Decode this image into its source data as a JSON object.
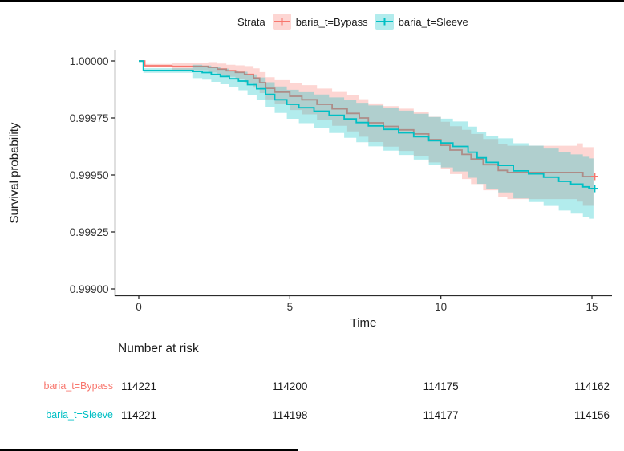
{
  "chart_data": {
    "type": "line",
    "subtype": "kaplan-meier-step",
    "title": "",
    "xlabel": "Time",
    "ylabel": "Survival probability",
    "xlim": [
      0,
      15
    ],
    "ylim": [
      0.999,
      1.0
    ],
    "grid": "off",
    "legend_position": "top",
    "legend_title": "Strata",
    "x_ticks": [
      {
        "v": 0,
        "label": "0"
      },
      {
        "v": 5,
        "label": "5"
      },
      {
        "v": 10,
        "label": "10"
      },
      {
        "v": 15,
        "label": "15"
      }
    ],
    "y_ticks": [
      {
        "v": 1.0,
        "label": "1.00000"
      },
      {
        "v": 0.99975,
        "label": "0.99975"
      },
      {
        "v": 0.9995,
        "label": "0.99950"
      },
      {
        "v": 0.99925,
        "label": "0.99925"
      },
      {
        "v": 0.999,
        "label": "0.99900"
      }
    ],
    "ci_alpha": 0.3,
    "censor_mark": "+",
    "series": [
      {
        "name": "baria_t=Bypass",
        "color": "#F8766D",
        "steps": [
          [
            0,
            1.0
          ],
          [
            0.2,
            0.999979
          ],
          [
            1.1,
            0.999976
          ],
          [
            2.3,
            0.999972
          ],
          [
            2.6,
            0.999964
          ],
          [
            2.9,
            0.999957
          ],
          [
            3.2,
            0.99995
          ],
          [
            3.5,
            0.999941
          ],
          [
            3.8,
            0.999925
          ],
          [
            4.0,
            0.999905
          ],
          [
            4.2,
            0.99988
          ],
          [
            4.5,
            0.999863
          ],
          [
            5.0,
            0.999845
          ],
          [
            5.4,
            0.99983
          ],
          [
            5.9,
            0.99981
          ],
          [
            6.4,
            0.99979
          ],
          [
            6.9,
            0.99977
          ],
          [
            7.3,
            0.99975
          ],
          [
            7.6,
            0.999729
          ],
          [
            8.1,
            0.999713
          ],
          [
            8.6,
            0.999698
          ],
          [
            9.1,
            0.99968
          ],
          [
            9.6,
            0.999655
          ],
          [
            10.0,
            0.99963
          ],
          [
            10.3,
            0.999609
          ],
          [
            10.7,
            0.99959
          ],
          [
            11.0,
            0.99957
          ],
          [
            11.4,
            0.999545
          ],
          [
            11.9,
            0.99952
          ],
          [
            12.2,
            0.999511
          ],
          [
            14.5,
            0.999511
          ],
          [
            14.7,
            0.999493
          ],
          [
            15.05,
            0.999493
          ]
        ],
        "ci_margin": [
          [
            0,
            4e-06
          ],
          [
            0.5,
            1.3e-05
          ],
          [
            1,
            1.6e-05
          ],
          [
            2,
            2.1e-05
          ],
          [
            3,
            2.7e-05
          ],
          [
            4,
            4.6e-05
          ],
          [
            5,
            6e-05
          ],
          [
            6,
            7e-05
          ],
          [
            7,
            8e-05
          ],
          [
            8,
            8.8e-05
          ],
          [
            9,
            9.6e-05
          ],
          [
            10,
            0.000103
          ],
          [
            11,
            0.00011
          ],
          [
            12,
            0.000116
          ],
          [
            13,
            0.000121
          ],
          [
            14,
            0.000126
          ],
          [
            15.05,
            0.00013
          ]
        ]
      },
      {
        "name": "baria_t=Sleeve",
        "color": "#00BFC4",
        "steps": [
          [
            0,
            1.0
          ],
          [
            0.15,
            0.999958
          ],
          [
            1.8,
            0.999954
          ],
          [
            2.1,
            0.999949
          ],
          [
            2.4,
            0.999941
          ],
          [
            2.7,
            0.999932
          ],
          [
            3.0,
            0.999922
          ],
          [
            3.3,
            0.999912
          ],
          [
            3.6,
            0.999896
          ],
          [
            3.9,
            0.999878
          ],
          [
            4.2,
            0.999853
          ],
          [
            4.5,
            0.99983
          ],
          [
            4.9,
            0.99981
          ],
          [
            5.3,
            0.999795
          ],
          [
            5.8,
            0.99978
          ],
          [
            6.3,
            0.999762
          ],
          [
            6.8,
            0.999746
          ],
          [
            7.2,
            0.99973
          ],
          [
            7.6,
            0.999715
          ],
          [
            8.1,
            0.9997
          ],
          [
            8.6,
            0.999685
          ],
          [
            9.1,
            0.999668
          ],
          [
            9.6,
            0.99965
          ],
          [
            10.0,
            0.99964
          ],
          [
            10.4,
            0.999625
          ],
          [
            10.9,
            0.9996
          ],
          [
            11.2,
            0.999575
          ],
          [
            11.5,
            0.999555
          ],
          [
            11.9,
            0.999542
          ],
          [
            12.4,
            0.999518
          ],
          [
            12.9,
            0.999505
          ],
          [
            13.4,
            0.99949
          ],
          [
            13.9,
            0.999472
          ],
          [
            14.3,
            0.99946
          ],
          [
            14.7,
            0.999448
          ],
          [
            14.9,
            0.99944
          ],
          [
            15.05,
            0.99944
          ]
        ],
        "ci_margin": [
          [
            0,
            6e-06
          ],
          [
            0.5,
            1.9e-05
          ],
          [
            1,
            2.6e-05
          ],
          [
            2,
            3e-05
          ],
          [
            3,
            3.6e-05
          ],
          [
            4,
            5.1e-05
          ],
          [
            5,
            6.5e-05
          ],
          [
            6,
            7.5e-05
          ],
          [
            7,
            8.5e-05
          ],
          [
            8,
            9.3e-05
          ],
          [
            9,
            0.0001
          ],
          [
            10,
            0.000107
          ],
          [
            11,
            0.000113
          ],
          [
            12,
            0.000119
          ],
          [
            13,
            0.000124
          ],
          [
            14,
            0.000129
          ],
          [
            15.05,
            0.000133
          ]
        ]
      }
    ],
    "risk_table": {
      "title": "Number at risk",
      "times": [
        0,
        5,
        10,
        15
      ],
      "rows": [
        {
          "name": "baria_t=Bypass",
          "color": "#F8766D",
          "values": [
            "114221",
            "114200",
            "114175",
            "114162"
          ]
        },
        {
          "name": "baria_t=Sleeve",
          "color": "#00BFC4",
          "values": [
            "114221",
            "114198",
            "114177",
            "114156"
          ]
        }
      ]
    }
  }
}
